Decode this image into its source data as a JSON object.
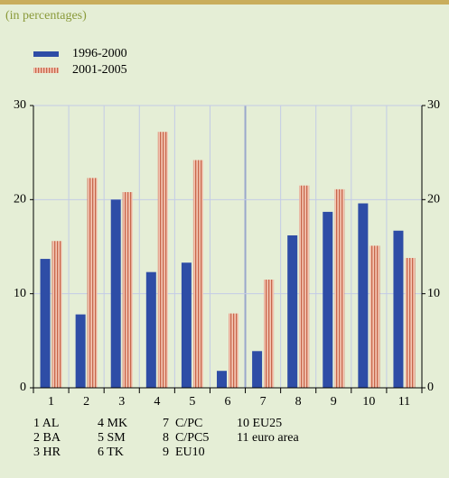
{
  "chart_data": {
    "type": "bar",
    "subtitle": "(in percentages)",
    "categories": [
      "1",
      "2",
      "3",
      "4",
      "5",
      "6",
      "7",
      "8",
      "9",
      "10",
      "11"
    ],
    "series": [
      {
        "name": "1996-2000",
        "color": "#2e4da6",
        "values": [
          13.7,
          7.8,
          20.0,
          12.3,
          13.3,
          1.8,
          3.9,
          16.2,
          18.7,
          19.6,
          16.7
        ]
      },
      {
        "name": "2001-2005",
        "color": "#e8a48a",
        "values": [
          15.6,
          22.3,
          20.8,
          27.2,
          24.2,
          7.9,
          11.5,
          21.5,
          21.1,
          15.1,
          13.8
        ]
      }
    ],
    "ylim": [
      0,
      30
    ],
    "yticks": [
      0,
      10,
      20,
      30
    ],
    "grid": true,
    "key": [
      "1 AL",
      "2 BA",
      "3 HR",
      "4 MK",
      "5 SM",
      "6 TK",
      "7  C/PC",
      "8  C/PC5",
      "9  EU10",
      "10 EU25",
      "11 euro area"
    ]
  }
}
